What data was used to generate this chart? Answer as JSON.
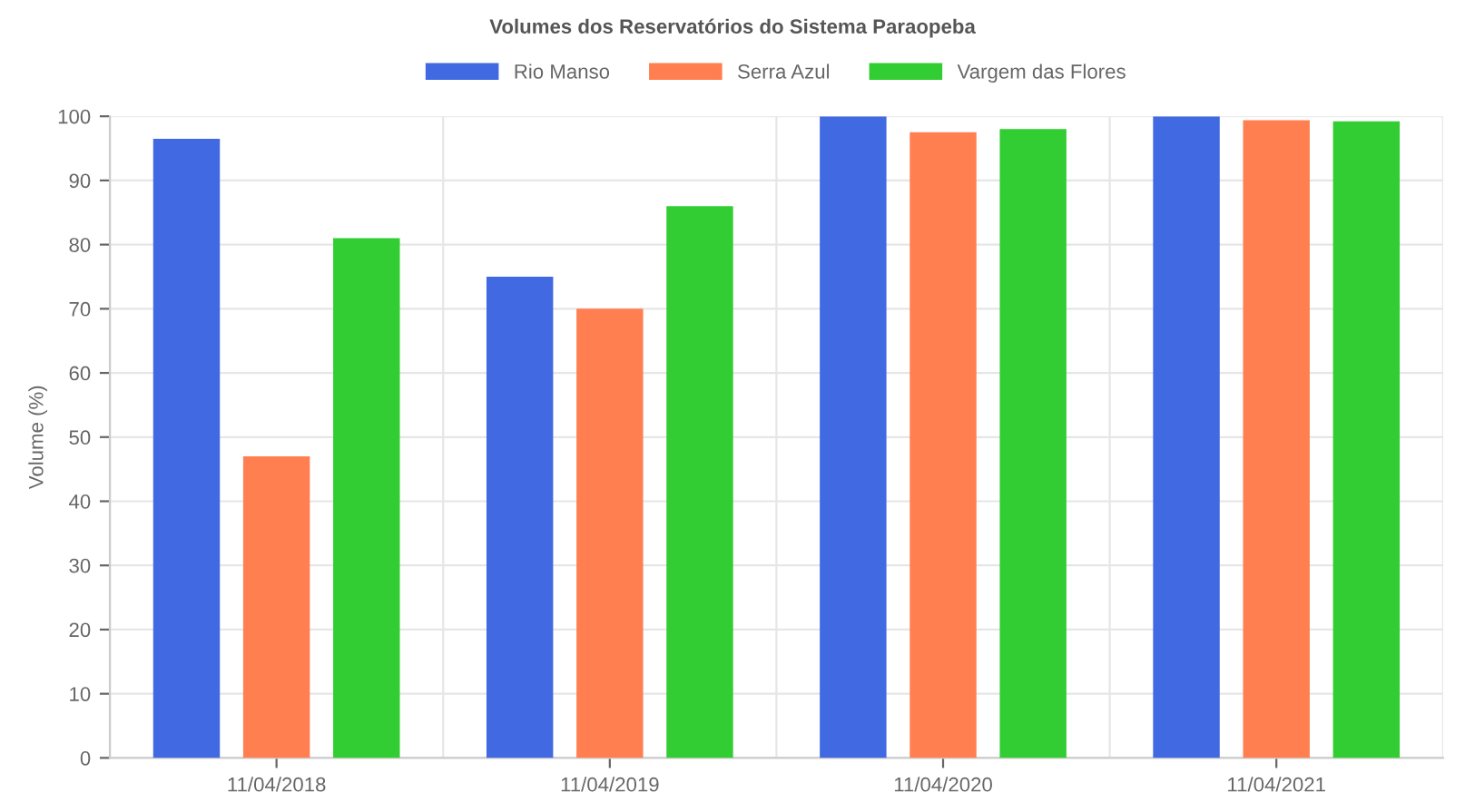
{
  "chart_data": {
    "type": "bar",
    "title": "Volumes dos Reservatórios do Sistema Paraopeba",
    "ylabel": "Volume (%)",
    "categories": [
      "11/04/2018",
      "11/04/2019",
      "11/04/2020",
      "11/04/2021"
    ],
    "series": [
      {
        "name": "Rio Manso",
        "color": "#4169e1",
        "values": [
          96.5,
          75,
          100,
          100
        ]
      },
      {
        "name": "Serra Azul",
        "color": "#ff7f50",
        "values": [
          47,
          70,
          97.5,
          99.4
        ]
      },
      {
        "name": "Vargem das Flores",
        "color": "#32cd32",
        "values": [
          81,
          86,
          98,
          99.2
        ]
      }
    ],
    "ylim": [
      0,
      100
    ],
    "yticks": [
      0,
      10,
      20,
      30,
      40,
      50,
      60,
      70,
      80,
      90,
      100
    ],
    "grid": true,
    "legend": "top"
  }
}
